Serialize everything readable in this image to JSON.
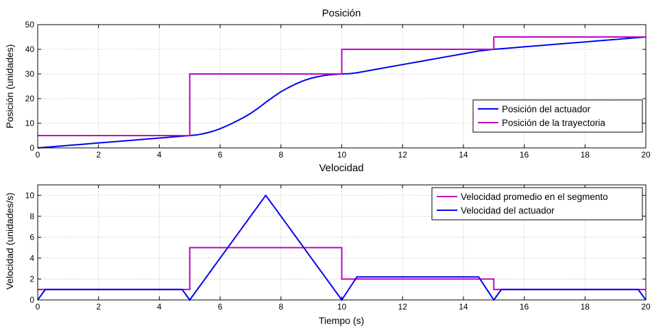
{
  "colors": {
    "magenta": "#c000c0",
    "blue": "#0000ee",
    "grid": "#b8b8b8"
  },
  "chart_data": [
    {
      "type": "line",
      "title": "Posición",
      "xlabel": "",
      "ylabel": "Posición (unidades)",
      "xlim": [
        0,
        20
      ],
      "ylim": [
        0,
        50
      ],
      "xticks": [
        0,
        2,
        4,
        6,
        8,
        10,
        12,
        14,
        16,
        18,
        20
      ],
      "yticks": [
        0,
        10,
        20,
        30,
        40,
        50
      ],
      "grid": true,
      "legend_position": "bottom-right",
      "series": [
        {
          "name": "Posición del actuador",
          "color": "#0000ee",
          "x": [
            0,
            0.5,
            1,
            1.5,
            2,
            2.5,
            3,
            3.5,
            4,
            4.5,
            5,
            5.25,
            5.5,
            5.75,
            6,
            6.25,
            6.5,
            6.75,
            7,
            7.25,
            7.5,
            7.75,
            8,
            8.25,
            8.5,
            8.75,
            9,
            9.25,
            9.5,
            9.75,
            10,
            10.25,
            10.5,
            11,
            11.5,
            12,
            12.5,
            13,
            13.5,
            14,
            14.5,
            15,
            15.5,
            16,
            16.5,
            17,
            17.5,
            18,
            18.5,
            19,
            19.5,
            20
          ],
          "y": [
            0,
            0.5,
            1,
            1.5,
            2,
            2.5,
            3,
            3.5,
            4,
            4.5,
            5,
            5.3,
            5.9,
            6.7,
            7.8,
            9.1,
            10.6,
            12.2,
            14,
            16.1,
            18.5,
            20.7,
            22.8,
            24.5,
            26,
            27.3,
            28.3,
            29,
            29.5,
            29.8,
            30,
            30.1,
            30.5,
            31.6,
            32.7,
            33.8,
            34.9,
            36,
            37.1,
            38.2,
            39.3,
            40,
            40.5,
            41,
            41.5,
            42,
            42.5,
            43,
            43.5,
            44,
            44.5,
            45
          ]
        },
        {
          "name": "Posición de la trayectoria",
          "color": "#c000c0",
          "x": [
            0,
            5,
            5,
            10,
            10,
            15,
            15,
            20
          ],
          "y": [
            5,
            5,
            30,
            30,
            40,
            40,
            45,
            45
          ]
        }
      ]
    },
    {
      "type": "line",
      "title": "Velocidad",
      "xlabel": "Tiempo (s)",
      "ylabel": "Velocidad (unidades/s)",
      "xlim": [
        0,
        20
      ],
      "ylim": [
        0,
        11
      ],
      "xticks": [
        0,
        2,
        4,
        6,
        8,
        10,
        12,
        14,
        16,
        18,
        20
      ],
      "yticks": [
        0,
        2,
        4,
        6,
        8,
        10
      ],
      "grid": true,
      "legend_position": "top-right",
      "series": [
        {
          "name": "Velocidad promedio en el segmento",
          "color": "#c000c0",
          "x": [
            0,
            5,
            5,
            10,
            10,
            15,
            15,
            20
          ],
          "y": [
            1,
            1,
            5,
            5,
            2,
            2,
            1,
            1
          ]
        },
        {
          "name": "Velocidad del actuador",
          "color": "#0000ee",
          "x": [
            0,
            0.25,
            4.75,
            5,
            7.5,
            10,
            10.5,
            14.5,
            15,
            15.25,
            19.75,
            20
          ],
          "y": [
            0,
            1,
            1,
            0,
            10,
            0,
            2.2,
            2.2,
            0,
            1,
            1,
            0
          ]
        }
      ]
    }
  ]
}
